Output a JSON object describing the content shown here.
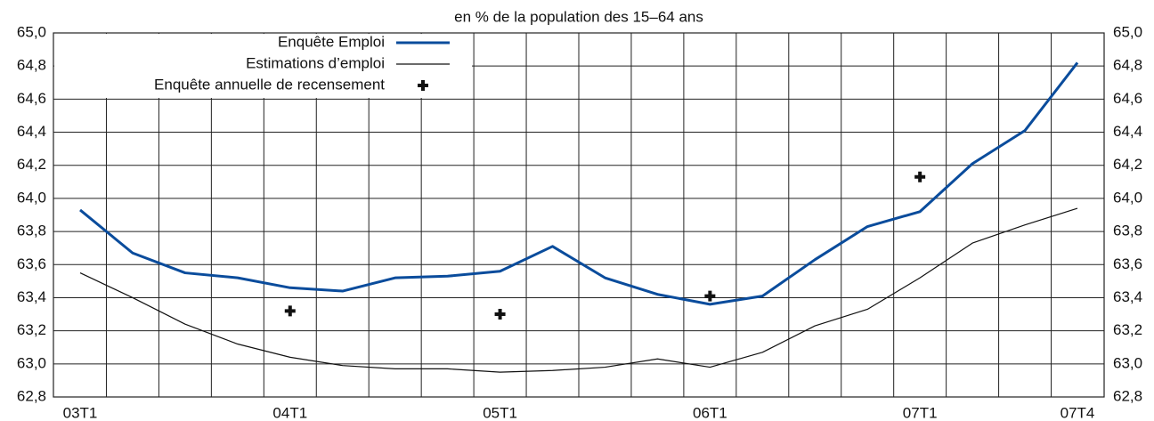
{
  "chart_data": {
    "type": "line",
    "title": "en % de la population des 15–64 ans",
    "categories": [
      "03T1",
      null,
      null,
      null,
      "04T1",
      null,
      null,
      null,
      "05T1",
      null,
      null,
      null,
      "06T1",
      null,
      null,
      null,
      "07T1",
      null,
      null,
      "07T4"
    ],
    "series": [
      {
        "name": "Enquête Emploi",
        "color": "#0a4c9c",
        "style": "line",
        "values": [
          63.93,
          63.67,
          63.55,
          63.52,
          63.46,
          63.44,
          63.52,
          63.53,
          63.56,
          63.71,
          63.52,
          63.42,
          63.36,
          63.41,
          63.63,
          63.83,
          63.92,
          64.21,
          64.41,
          64.82
        ]
      },
      {
        "name": "Estimations d’emploi",
        "color": "#111111",
        "style": "line",
        "values": [
          63.55,
          63.4,
          63.24,
          63.12,
          63.04,
          62.99,
          62.97,
          62.97,
          62.95,
          62.96,
          62.98,
          63.03,
          62.98,
          63.07,
          63.23,
          63.33,
          63.52,
          63.73,
          63.84,
          63.94
        ]
      },
      {
        "name": "Enquête annuelle de recensement",
        "color": "#111111",
        "style": "marker",
        "values": [
          null,
          null,
          null,
          null,
          63.32,
          null,
          null,
          null,
          63.3,
          null,
          null,
          null,
          63.41,
          null,
          null,
          null,
          64.13,
          null,
          null,
          null
        ]
      }
    ],
    "ylim": [
      62.8,
      65.0
    ],
    "yticks": [
      {
        "value": 62.8,
        "label": "62,8"
      },
      {
        "value": 63.0,
        "label": "63,0"
      },
      {
        "value": 63.2,
        "label": "63,2"
      },
      {
        "value": 63.4,
        "label": "63,4"
      },
      {
        "value": 63.6,
        "label": "63,6"
      },
      {
        "value": 63.8,
        "label": "63,8"
      },
      {
        "value": 64.0,
        "label": "64,0"
      },
      {
        "value": 64.2,
        "label": "64,2"
      },
      {
        "value": 64.4,
        "label": "64,4"
      },
      {
        "value": 64.6,
        "label": "64,6"
      },
      {
        "value": 64.8,
        "label": "64,8"
      },
      {
        "value": 65.0,
        "label": "65,0"
      }
    ],
    "y2lim": [
      62.8,
      65.0
    ],
    "y2ticks": [
      {
        "value": 62.8,
        "label": "62,8"
      },
      {
        "value": 63.0,
        "label": "63,0"
      },
      {
        "value": 63.2,
        "label": "63,2"
      },
      {
        "value": 63.4,
        "label": "63,4"
      },
      {
        "value": 63.6,
        "label": "63,6"
      },
      {
        "value": 63.8,
        "label": "63,8"
      },
      {
        "value": 64.0,
        "label": "64,0"
      },
      {
        "value": 64.2,
        "label": "64,2"
      },
      {
        "value": 64.4,
        "label": "64,4"
      },
      {
        "value": 64.6,
        "label": "64,6"
      },
      {
        "value": 64.8,
        "label": "64,8"
      },
      {
        "value": 65.0,
        "label": "65,0"
      }
    ],
    "grid": true,
    "legend": "top-left"
  }
}
